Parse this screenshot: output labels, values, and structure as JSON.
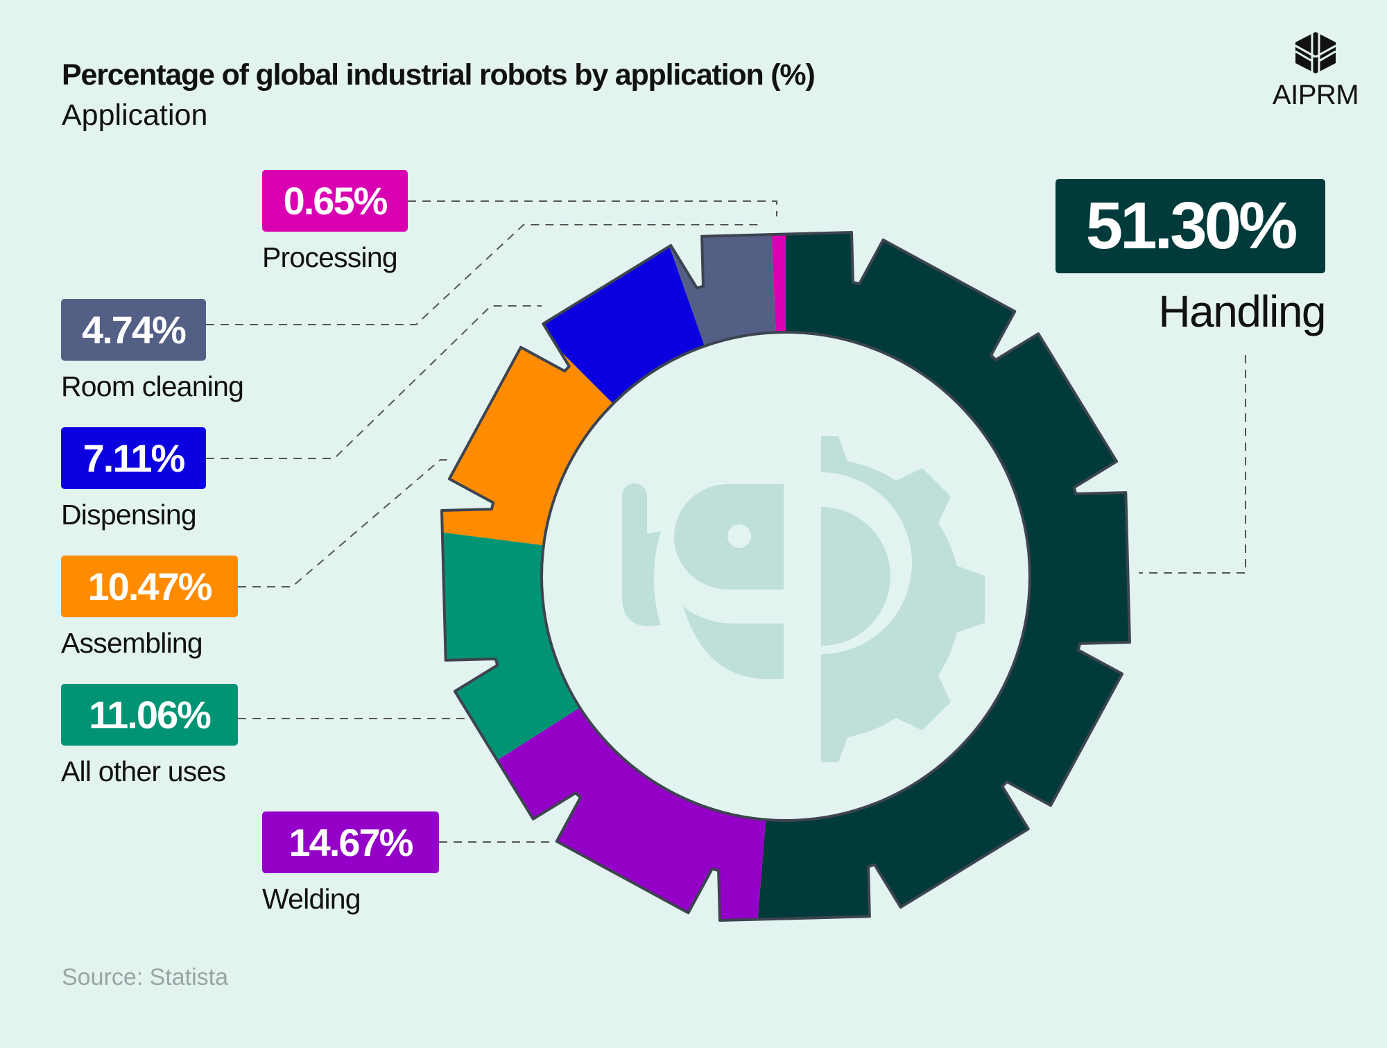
{
  "header": {
    "title": "Percentage of global industrial robots by application (%)",
    "subtitle": "Application"
  },
  "logo": {
    "text": "AIPRM",
    "icon": "hexagon-logo-icon"
  },
  "source": "Source: Statista",
  "colors": {
    "background": "#e2f3f0",
    "outline": "#3d4450",
    "center_icon": "#bfdfda"
  },
  "chart_data": {
    "type": "pie",
    "style": "donut shaped as a gear, slices clockwise from top",
    "title": "Percentage of global industrial robots by application (%)",
    "subtitle": "Application",
    "unit": "%",
    "slices": [
      {
        "name": "Handling",
        "value": 51.3,
        "label": "51.30%",
        "color": "#003a3a"
      },
      {
        "name": "Welding",
        "value": 14.67,
        "label": "14.67%",
        "color": "#9400c8"
      },
      {
        "name": "All other uses",
        "value": 11.06,
        "label": "11.06%",
        "color": "#009475"
      },
      {
        "name": "Assembling",
        "value": 10.47,
        "label": "10.47%",
        "color": "#ff8c00"
      },
      {
        "name": "Dispensing",
        "value": 7.11,
        "label": "7.11%",
        "color": "#0a00e0"
      },
      {
        "name": "Room cleaning",
        "value": 4.74,
        "label": "4.74%",
        "color": "#545f86"
      },
      {
        "name": "Processing",
        "value": 0.65,
        "label": "0.65%",
        "color": "#d800b0"
      }
    ]
  }
}
